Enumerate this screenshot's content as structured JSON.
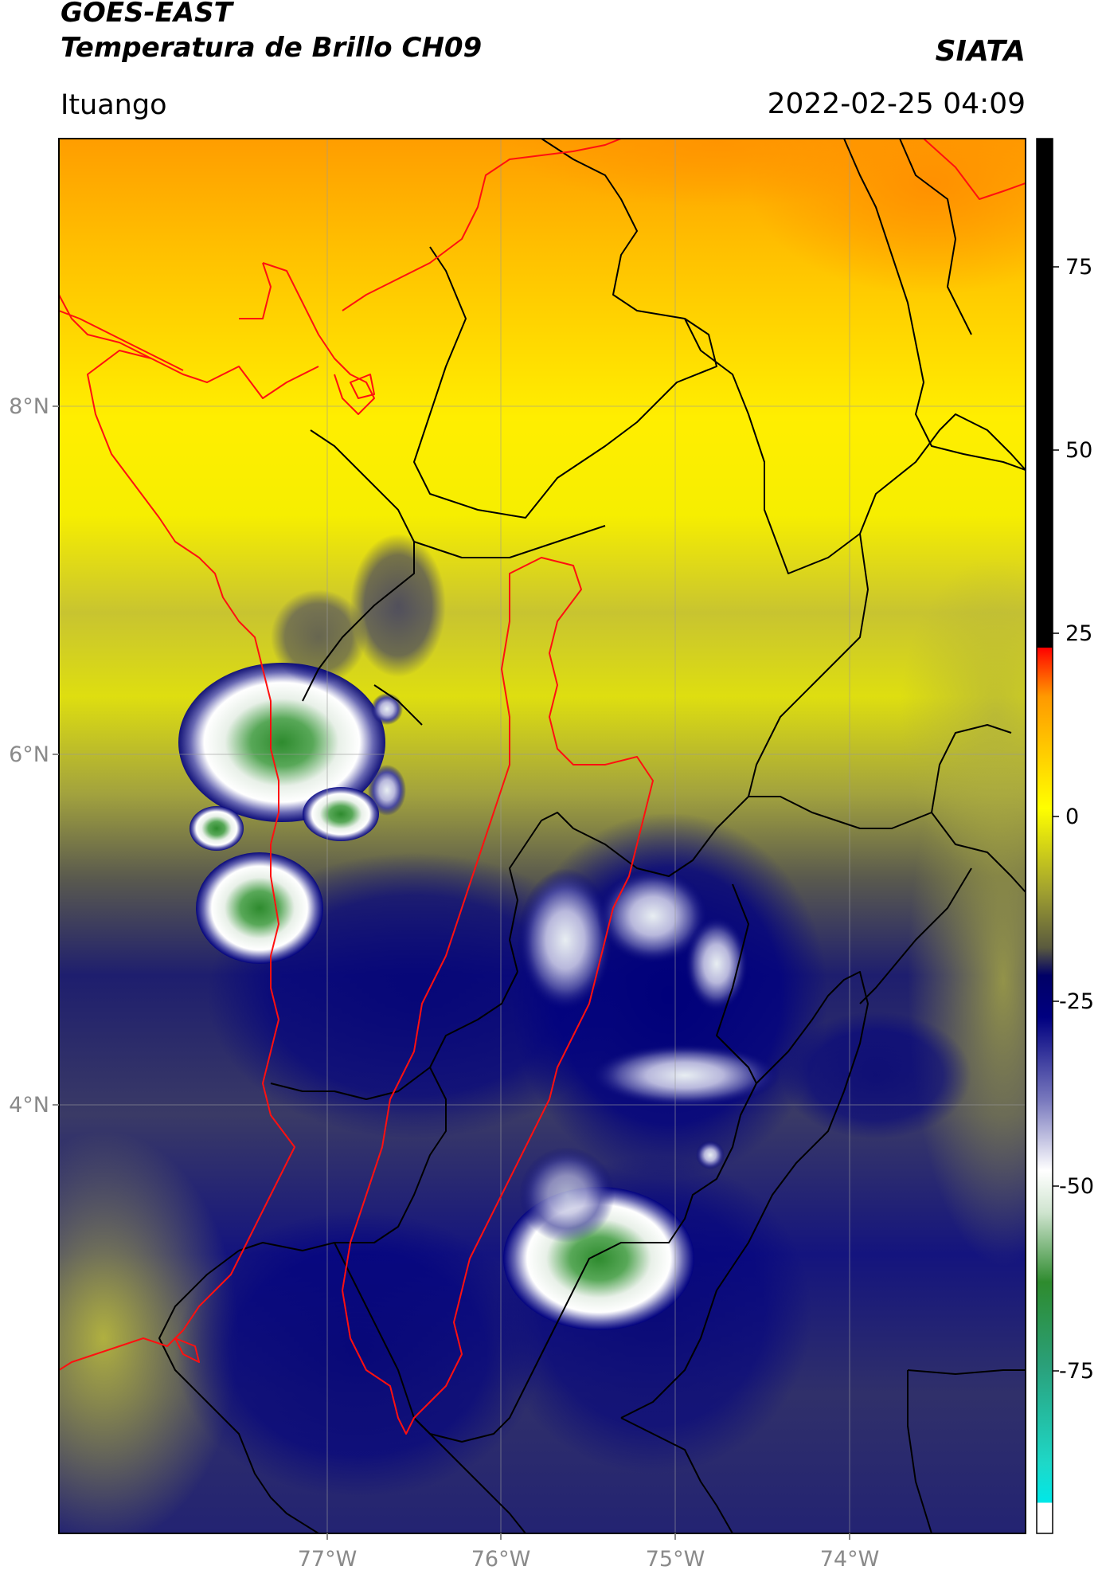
{
  "header": {
    "title_line1": "GOES-EAST",
    "title_line2": "Temperatura de Brillo CH09",
    "org": "SIATA",
    "place": "Ituango",
    "datetime": "2022-02-25 04:09"
  },
  "map": {
    "lat_labels": [
      "8°N",
      "6°N",
      "4°N"
    ],
    "lon_labels": [
      "77°W",
      "76°W",
      "75°W",
      "74°W"
    ]
  },
  "colorbar": {
    "tick_labels": [
      "75",
      "50",
      "25",
      "0",
      "-25",
      "-50",
      "-75"
    ],
    "colors": {
      "black": "#000000",
      "red": "#ff0000",
      "orange": "#ff9900",
      "yellow": "#ffff00",
      "olive": "#5c5c3a",
      "navy": "#000078",
      "white": "#ffffff",
      "green": "#2e8b2e",
      "cyan": "#19e0d0"
    }
  }
}
